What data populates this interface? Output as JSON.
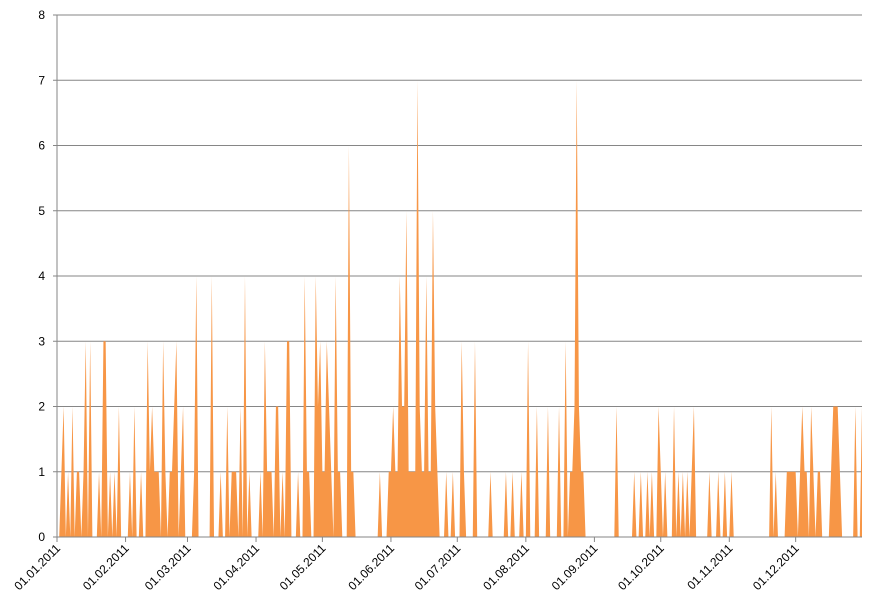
{
  "chart_data": {
    "type": "area",
    "color": "#f79646",
    "grid": true,
    "ylim": [
      0,
      8
    ],
    "yticks": [
      0,
      1,
      2,
      3,
      4,
      5,
      6,
      7,
      8
    ],
    "categories": [
      "01.01.2011",
      null,
      null,
      null,
      null,
      null,
      null,
      null,
      null,
      null,
      null,
      null,
      null,
      null,
      null,
      null,
      null,
      null,
      null,
      null,
      null,
      null,
      null,
      null,
      null,
      null,
      null,
      null,
      null,
      null,
      null,
      "01.02.2011",
      null,
      null,
      null,
      null,
      null,
      null,
      null,
      null,
      null,
      null,
      null,
      null,
      null,
      null,
      null,
      null,
      null,
      null,
      null,
      null,
      null,
      null,
      null,
      null,
      null,
      null,
      null,
      "01.03.2011",
      null,
      null,
      null,
      null,
      null,
      null,
      null,
      null,
      null,
      null,
      null,
      null,
      null,
      null,
      null,
      null,
      null,
      null,
      null,
      null,
      null,
      null,
      null,
      null,
      null,
      null,
      null,
      null,
      null,
      null,
      "01.04.2011",
      null,
      null,
      null,
      null,
      null,
      null,
      null,
      null,
      null,
      null,
      null,
      null,
      null,
      null,
      null,
      null,
      null,
      null,
      null,
      null,
      null,
      null,
      null,
      null,
      null,
      null,
      null,
      null,
      null,
      "01.05.2011",
      null,
      null,
      null,
      null,
      null,
      null,
      null,
      null,
      null,
      null,
      null,
      null,
      null,
      null,
      null,
      null,
      null,
      null,
      null,
      null,
      null,
      null,
      null,
      null,
      null,
      null,
      null,
      null,
      null,
      null,
      "01.06.2011",
      null,
      null,
      null,
      null,
      null,
      null,
      null,
      null,
      null,
      null,
      null,
      null,
      null,
      null,
      null,
      null,
      null,
      null,
      null,
      null,
      null,
      null,
      null,
      null,
      null,
      null,
      null,
      null,
      null,
      "01.07.2011",
      null,
      null,
      null,
      null,
      null,
      null,
      null,
      null,
      null,
      null,
      null,
      null,
      null,
      null,
      null,
      null,
      null,
      null,
      null,
      null,
      null,
      null,
      null,
      null,
      null,
      null,
      null,
      null,
      null,
      null,
      "01.08.2011",
      null,
      null,
      null,
      null,
      null,
      null,
      null,
      null,
      null,
      null,
      null,
      null,
      null,
      null,
      null,
      null,
      null,
      null,
      null,
      null,
      null,
      null,
      null,
      null,
      null,
      null,
      null,
      null,
      null,
      null,
      "01.09.2011",
      null,
      null,
      null,
      null,
      null,
      null,
      null,
      null,
      null,
      null,
      null,
      null,
      null,
      null,
      null,
      null,
      null,
      null,
      null,
      null,
      null,
      null,
      null,
      null,
      null,
      null,
      null,
      null,
      null,
      "01.10.2011",
      null,
      null,
      null,
      null,
      null,
      null,
      null,
      null,
      null,
      null,
      null,
      null,
      null,
      null,
      null,
      null,
      null,
      null,
      null,
      null,
      null,
      null,
      null,
      null,
      null,
      null,
      null,
      null,
      null,
      null,
      "01.11.2011",
      null,
      null,
      null,
      null,
      null,
      null,
      null,
      null,
      null,
      null,
      null,
      null,
      null,
      null,
      null,
      null,
      null,
      null,
      null,
      null,
      null,
      null,
      null,
      null,
      null,
      null,
      null,
      null,
      null,
      "01.12.2011",
      null,
      null,
      null,
      null,
      null,
      null,
      null,
      null,
      null,
      null,
      null,
      null,
      null,
      null,
      null,
      null,
      null,
      null,
      null,
      null,
      null,
      null,
      null,
      null,
      null,
      null,
      null,
      null,
      null,
      null
    ],
    "values": [
      0,
      0,
      1,
      2,
      0,
      1,
      0,
      2,
      0,
      1,
      1,
      0,
      1,
      3,
      0,
      3,
      0,
      0,
      0,
      1,
      0,
      3,
      3,
      0,
      1,
      0,
      1,
      0,
      2,
      0,
      0,
      0,
      0,
      1,
      0,
      2,
      0,
      0,
      1,
      0,
      0,
      3,
      1,
      2,
      1,
      1,
      1,
      0,
      3,
      1,
      0,
      1,
      1,
      2,
      3,
      0,
      1,
      2,
      0,
      0,
      0,
      0,
      1,
      4,
      0,
      0,
      0,
      0,
      0,
      0,
      4,
      0,
      0,
      0,
      1,
      0,
      0,
      2,
      0,
      1,
      1,
      1,
      0,
      2,
      0,
      4,
      0,
      1,
      0,
      0,
      0,
      0,
      1,
      0,
      3,
      1,
      1,
      1,
      0,
      2,
      2,
      0,
      1,
      0,
      3,
      3,
      0,
      0,
      0,
      1,
      0,
      0,
      4,
      1,
      1,
      0,
      0,
      4,
      2,
      3,
      1,
      1,
      3,
      2,
      1,
      0,
      4,
      1,
      1,
      0,
      0,
      0,
      6,
      1,
      1,
      0,
      0,
      0,
      0,
      0,
      0,
      0,
      0,
      0,
      0,
      0,
      1,
      0,
      0,
      0,
      1,
      1,
      2,
      1,
      1,
      4,
      2,
      2,
      5,
      1,
      1,
      1,
      1,
      7,
      2,
      1,
      1,
      4,
      1,
      1,
      5,
      2,
      1,
      0,
      0,
      0,
      1,
      0,
      0,
      1,
      0,
      0,
      0,
      3,
      1,
      0,
      0,
      0,
      0,
      3,
      0,
      0,
      0,
      0,
      0,
      0,
      1,
      0,
      0,
      0,
      0,
      0,
      0,
      1,
      0,
      0,
      1,
      0,
      0,
      0,
      1,
      0,
      0,
      3,
      0,
      0,
      0,
      2,
      0,
      0,
      0,
      0,
      2,
      0,
      0,
      0,
      0,
      2,
      0,
      0,
      3,
      0,
      1,
      1,
      2,
      7,
      2,
      1,
      1,
      0,
      0,
      0,
      0,
      0,
      0,
      0,
      0,
      0,
      0,
      0,
      0,
      0,
      0,
      2,
      0,
      0,
      0,
      0,
      0,
      0,
      0,
      1,
      0,
      0,
      1,
      0,
      0,
      1,
      0,
      1,
      0,
      0,
      2,
      1,
      0,
      1,
      0,
      0,
      0,
      2,
      0,
      1,
      0,
      1,
      0,
      1,
      0,
      1,
      2,
      0,
      0,
      0,
      0,
      0,
      0,
      1,
      0,
      0,
      0,
      1,
      0,
      0,
      1,
      0,
      0,
      1,
      0,
      0,
      0,
      0,
      0,
      0,
      0,
      0,
      0,
      0,
      0,
      0,
      0,
      0,
      0,
      0,
      0,
      2,
      0,
      1,
      0,
      0,
      0,
      0,
      1,
      1,
      1,
      1,
      1,
      0,
      1,
      2,
      1,
      1,
      0,
      2,
      1,
      0,
      1,
      1,
      0,
      0,
      0,
      0,
      1,
      2,
      2,
      2,
      1,
      0,
      0,
      0,
      0,
      0,
      0,
      2,
      0,
      0,
      2
    ]
  }
}
